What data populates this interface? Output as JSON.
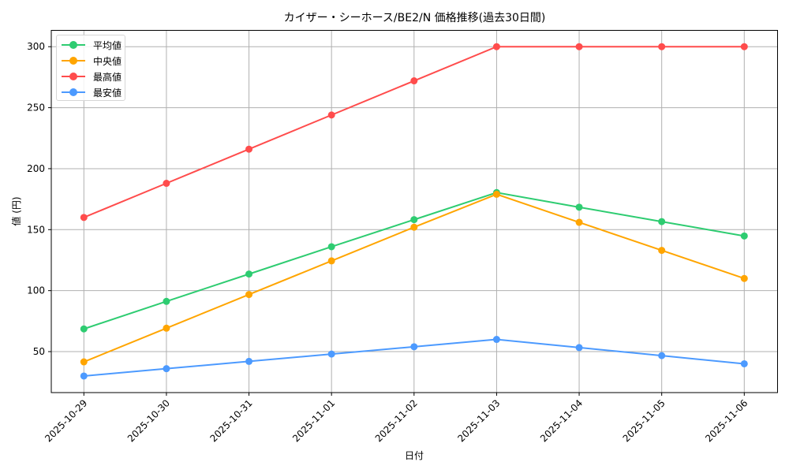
{
  "chart_data": {
    "type": "line",
    "title": "カイザー・シーホース/BE2/N 価格推移(過去30日間)",
    "xlabel": "日付",
    "ylabel": "値 (円)",
    "x": [
      "2025-10-29",
      "2025-10-30",
      "2025-10-31",
      "2025-11-01",
      "2025-11-02",
      "2025-11-03",
      "2025-11-04",
      "2025-11-05",
      "2025-11-06"
    ],
    "series": [
      {
        "name": "平均値",
        "color": "#2ecc71",
        "values": [
          68.6,
          91.2,
          113.6,
          136.0,
          158.2,
          180.4,
          168.4,
          156.6,
          144.8
        ]
      },
      {
        "name": "中央値",
        "color": "#ffa500",
        "values": [
          41.6,
          69.2,
          96.8,
          124.4,
          152.0,
          179.0,
          156.0,
          133.0,
          110.0
        ]
      },
      {
        "name": "最高値",
        "color": "#ff4c4c",
        "values": [
          160,
          188,
          216,
          244,
          272,
          300,
          300,
          300,
          300
        ]
      },
      {
        "name": "最安値",
        "color": "#4c9aff",
        "values": [
          30,
          36,
          42,
          48,
          54,
          60,
          53.3,
          46.7,
          40
        ]
      }
    ],
    "yticks": [
      50,
      100,
      150,
      200,
      250,
      300
    ],
    "ylim": [
      16.4,
      313.4
    ],
    "grid": true,
    "legend_position": "upper left",
    "markers": "circle",
    "xtick_rotation": 45
  }
}
